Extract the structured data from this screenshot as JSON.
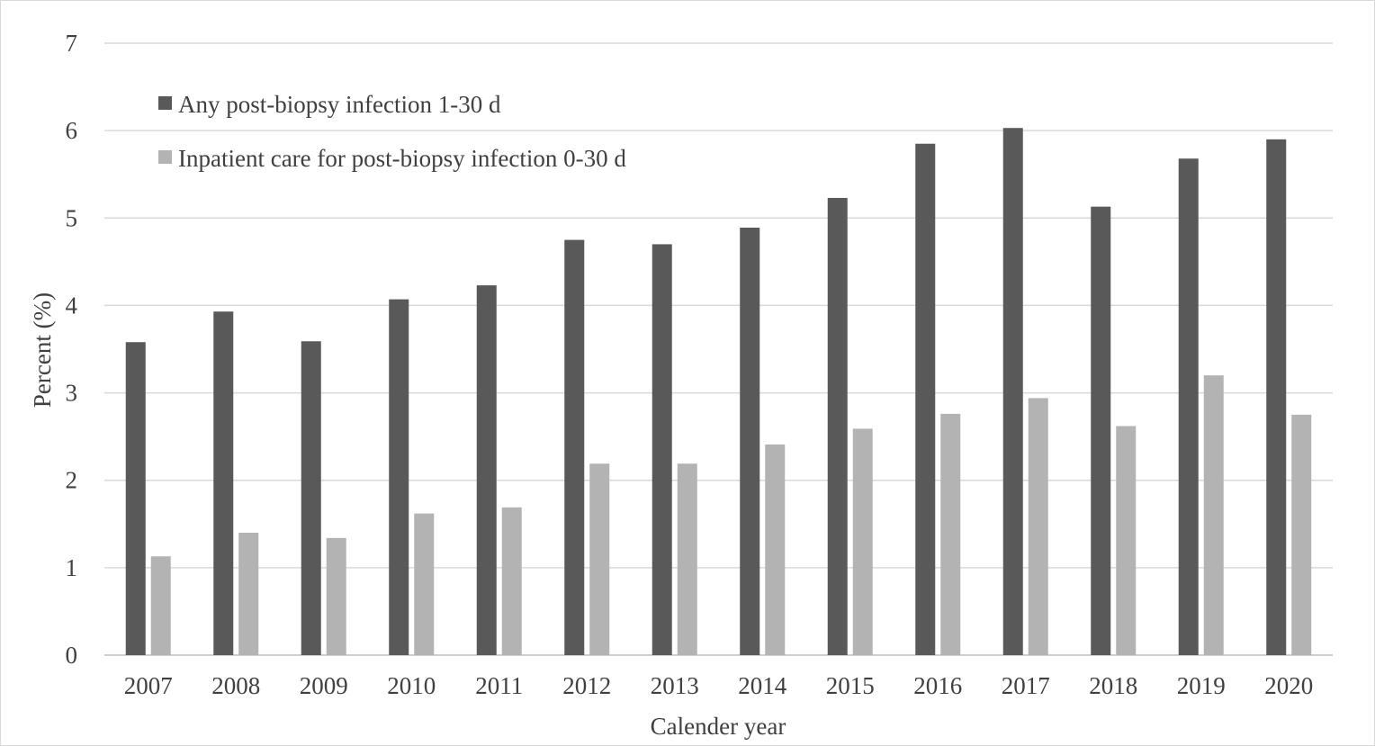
{
  "chart_data": {
    "type": "bar",
    "title": "",
    "xlabel": "Calender year",
    "ylabel": "Percent (%)",
    "ylim": [
      0,
      7
    ],
    "yticks": [
      0,
      1,
      2,
      3,
      4,
      5,
      6,
      7
    ],
    "grid": true,
    "legend_position": "top-left",
    "categories": [
      "2007",
      "2008",
      "2009",
      "2010",
      "2011",
      "2012",
      "2013",
      "2014",
      "2015",
      "2016",
      "2017",
      "2018",
      "2019",
      "2020"
    ],
    "series": [
      {
        "name": "Any post-biopsy infection 1-30 d",
        "color": "#595959",
        "values": [
          3.58,
          3.93,
          3.59,
          4.07,
          4.23,
          4.75,
          4.7,
          4.89,
          5.23,
          5.85,
          6.03,
          5.13,
          5.68,
          5.9
        ]
      },
      {
        "name": "Inpatient care for post-biopsy infection 0-30 d",
        "color": "#b3b3b3",
        "values": [
          1.13,
          1.4,
          1.34,
          1.62,
          1.69,
          2.19,
          2.19,
          2.41,
          2.59,
          2.76,
          2.94,
          2.62,
          3.2,
          2.75
        ]
      }
    ],
    "gridline_color": "#d9d9d9",
    "axis_color": "#bfbfbf"
  }
}
